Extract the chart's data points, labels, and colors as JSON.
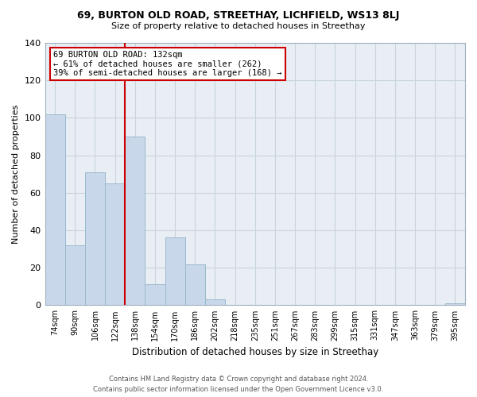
{
  "title": "69, BURTON OLD ROAD, STREETHAY, LICHFIELD, WS13 8LJ",
  "subtitle": "Size of property relative to detached houses in Streethay",
  "xlabel": "Distribution of detached houses by size in Streethay",
  "ylabel": "Number of detached properties",
  "bar_labels": [
    "74sqm",
    "90sqm",
    "106sqm",
    "122sqm",
    "138sqm",
    "154sqm",
    "170sqm",
    "186sqm",
    "202sqm",
    "218sqm",
    "235sqm",
    "251sqm",
    "267sqm",
    "283sqm",
    "299sqm",
    "315sqm",
    "331sqm",
    "347sqm",
    "363sqm",
    "379sqm",
    "395sqm"
  ],
  "bar_values": [
    102,
    32,
    71,
    65,
    90,
    11,
    36,
    22,
    3,
    0,
    0,
    0,
    0,
    0,
    0,
    0,
    0,
    0,
    0,
    0,
    1
  ],
  "bar_color": "#c8d8ea",
  "bar_edge_color": "#9ab8cc",
  "vline_color": "#cc0000",
  "annotation_text": "69 BURTON OLD ROAD: 132sqm\n← 61% of detached houses are smaller (262)\n39% of semi-detached houses are larger (168) →",
  "annotation_box_edge": "#cc0000",
  "ylim": [
    0,
    140
  ],
  "yticks": [
    0,
    20,
    40,
    60,
    80,
    100,
    120,
    140
  ],
  "grid_color": "#c8d4de",
  "bg_color": "#e8eef4",
  "footer_line1": "Contains HM Land Registry data © Crown copyright and database right 2024.",
  "footer_line2": "Contains public sector information licensed under the Open Government Licence v3.0."
}
